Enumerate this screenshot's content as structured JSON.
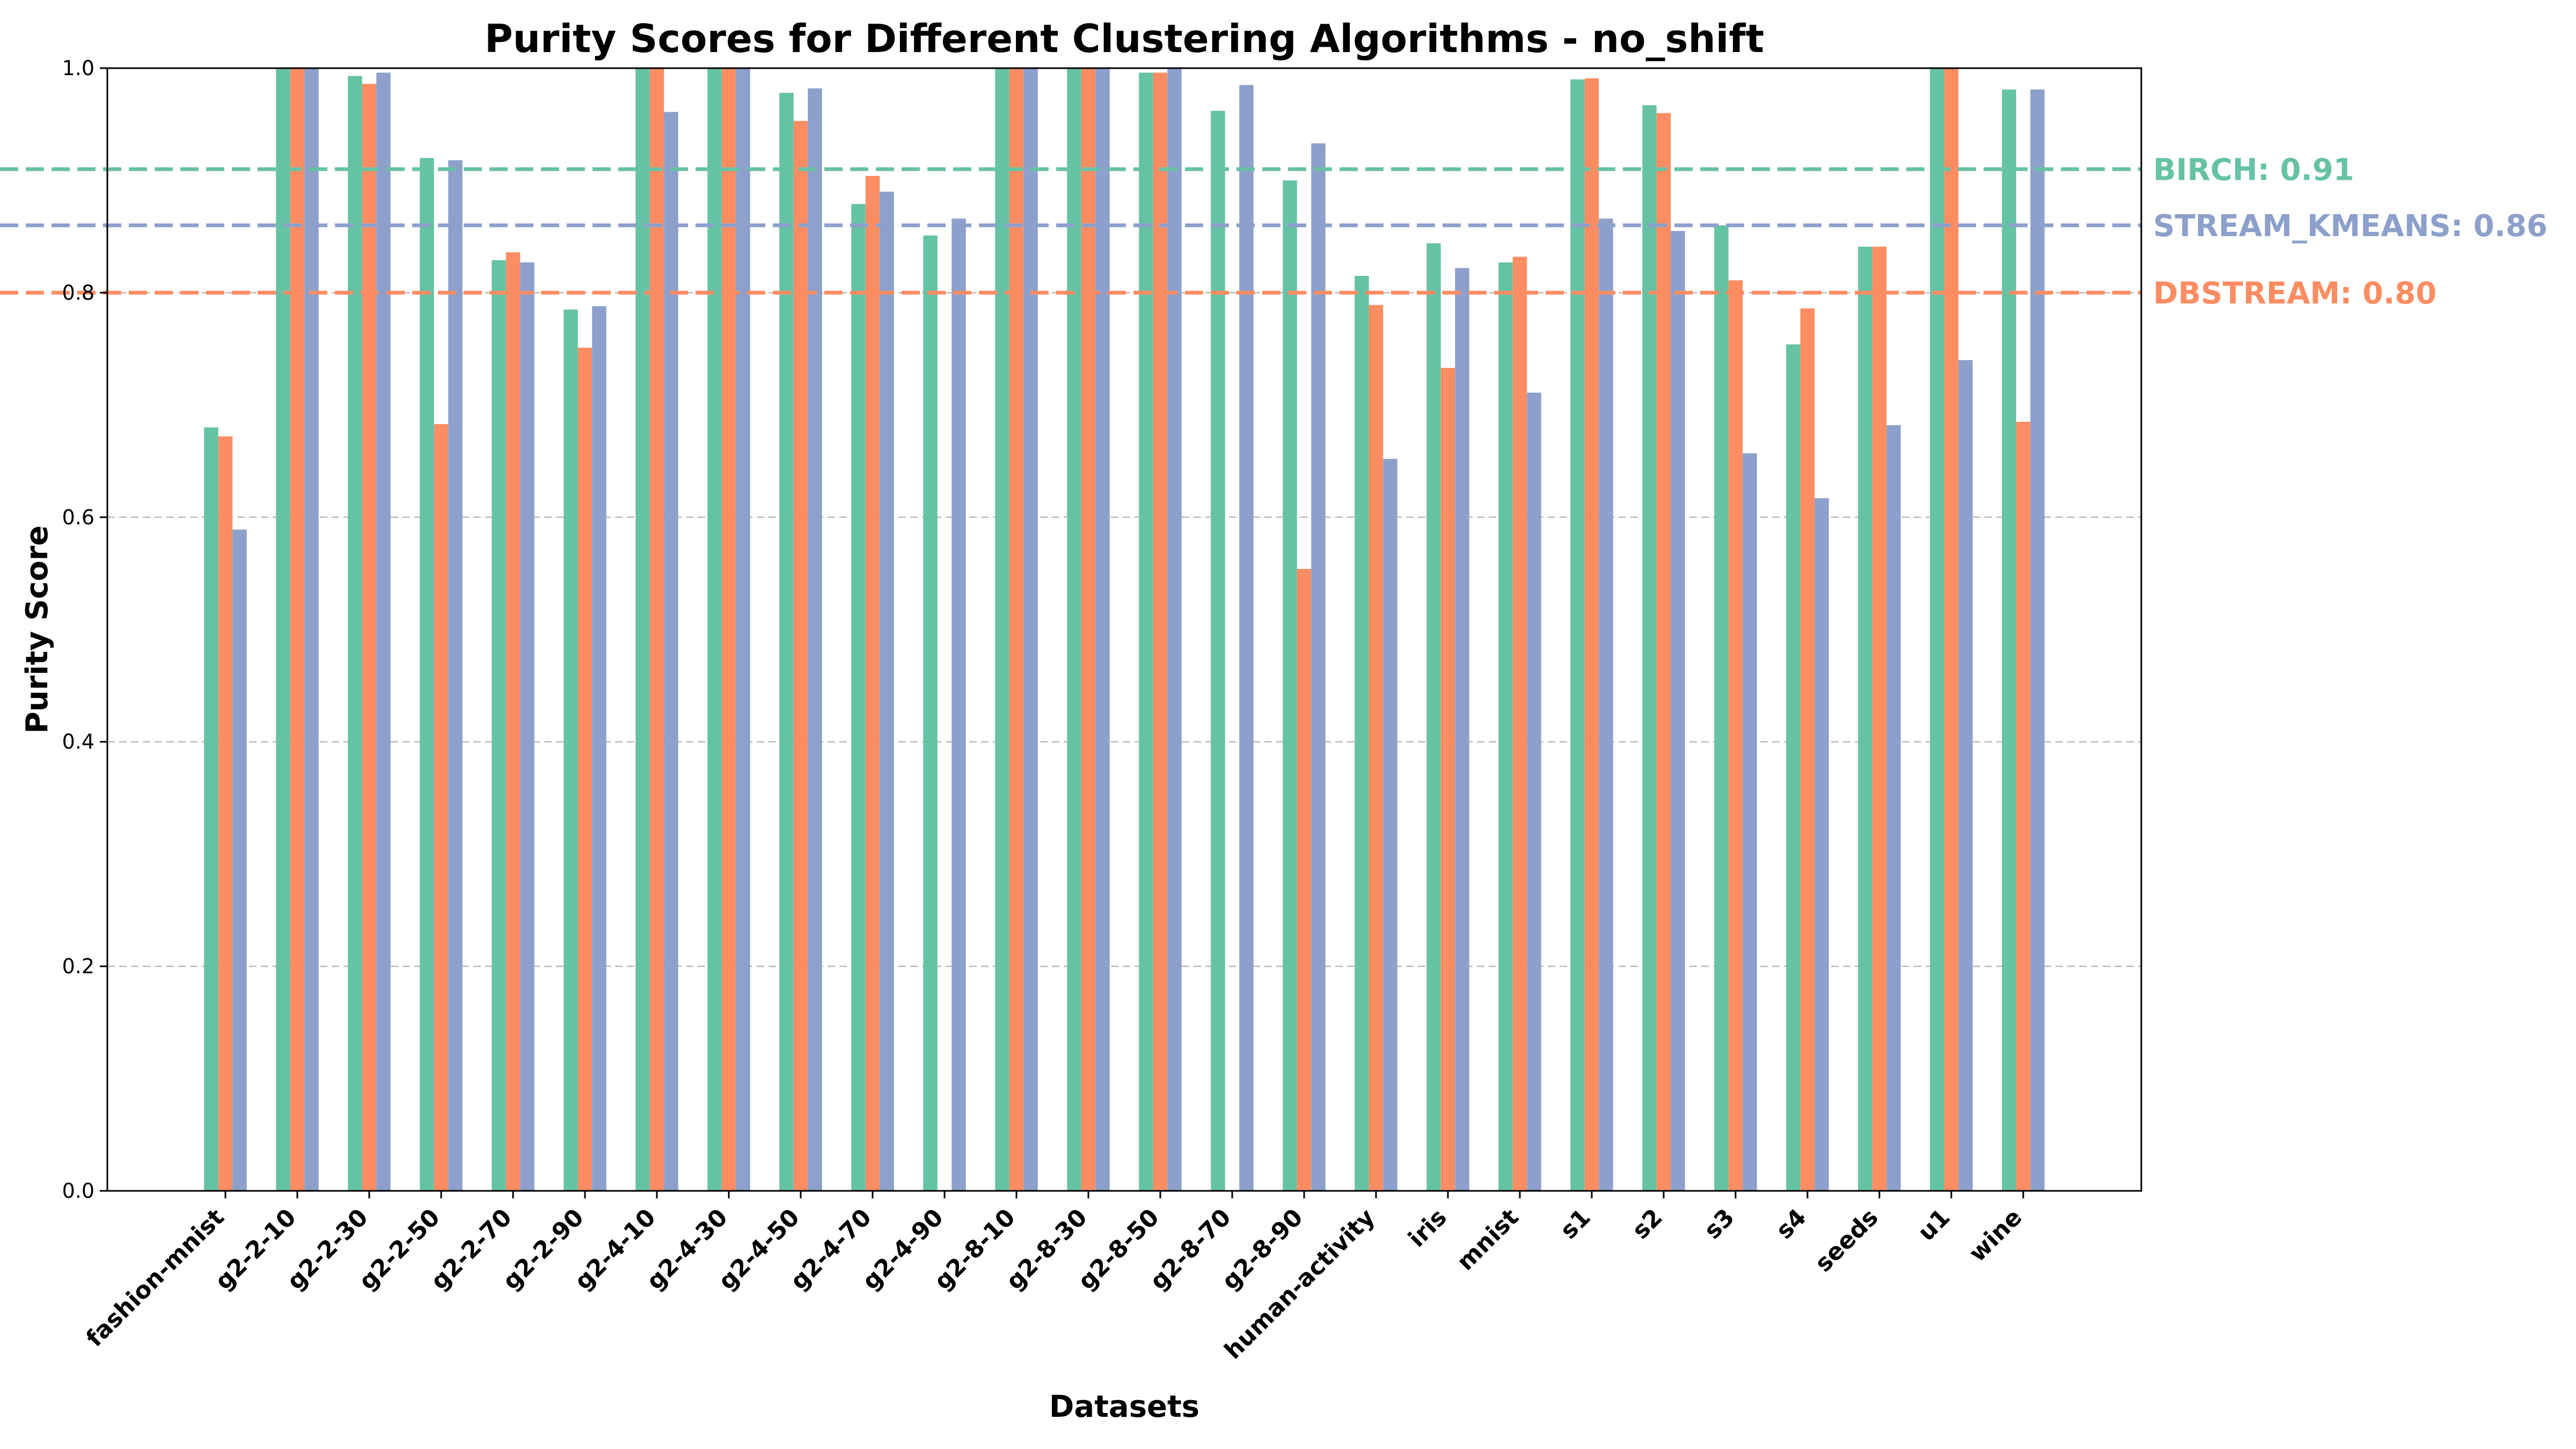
{
  "chart_data": {
    "type": "bar",
    "title": "Purity Scores for Different Clustering Algorithms - no_shift",
    "xlabel": "Datasets",
    "ylabel": "Purity Score",
    "ylim": [
      0,
      1
    ],
    "yticks": [
      "0.0",
      "0.2",
      "0.4",
      "0.6",
      "0.8",
      "1.0"
    ],
    "grid": "y-dashed",
    "categories": [
      "fashion-mnist",
      "g2-2-10",
      "g2-2-30",
      "g2-2-50",
      "g2-2-70",
      "g2-2-90",
      "g2-4-10",
      "g2-4-30",
      "g2-4-50",
      "g2-4-70",
      "g2-4-90",
      "g2-8-10",
      "g2-8-30",
      "g2-8-50",
      "g2-8-70",
      "g2-8-90",
      "human-activity",
      "iris",
      "mnist",
      "s1",
      "s2",
      "s3",
      "s4",
      "seeds",
      "u1",
      "wine"
    ],
    "series": [
      {
        "color": "#66c2a5",
        "values": [
          0.68,
          1.0,
          0.993,
          0.92,
          0.829,
          0.785,
          1.0,
          1.0,
          0.978,
          0.879,
          0.851,
          1.0,
          1.0,
          0.996,
          0.962,
          0.9,
          0.815,
          0.844,
          0.827,
          0.99,
          0.967,
          0.86,
          0.754,
          0.841,
          1.0,
          0.981
        ]
      },
      {
        "color": "#fc8d62",
        "values": [
          0.672,
          1.0,
          0.986,
          0.683,
          0.836,
          0.751,
          1.0,
          1.0,
          0.953,
          0.904,
          null,
          1.0,
          1.0,
          0.996,
          null,
          0.554,
          0.789,
          0.733,
          0.832,
          0.991,
          0.96,
          0.811,
          0.786,
          0.841,
          1.0,
          0.685
        ]
      },
      {
        "color": "#8da0cb",
        "values": [
          0.589,
          1.0,
          0.996,
          0.918,
          0.827,
          0.788,
          0.961,
          1.0,
          0.982,
          0.89,
          0.866,
          1.0,
          1.0,
          1.0,
          0.985,
          0.933,
          0.652,
          0.822,
          0.711,
          0.866,
          0.855,
          0.657,
          0.617,
          0.682,
          0.74,
          0.981
        ]
      }
    ],
    "mean_lines": [
      {
        "label": "BIRCH: 0.91",
        "value": 0.91,
        "color": "#66c2a5"
      },
      {
        "label": "STREAM_KMEANS: 0.86",
        "value": 0.86,
        "color": "#8da0cb"
      },
      {
        "label": "DBSTREAM: 0.80",
        "value": 0.8,
        "color": "#fc8d62"
      }
    ]
  }
}
